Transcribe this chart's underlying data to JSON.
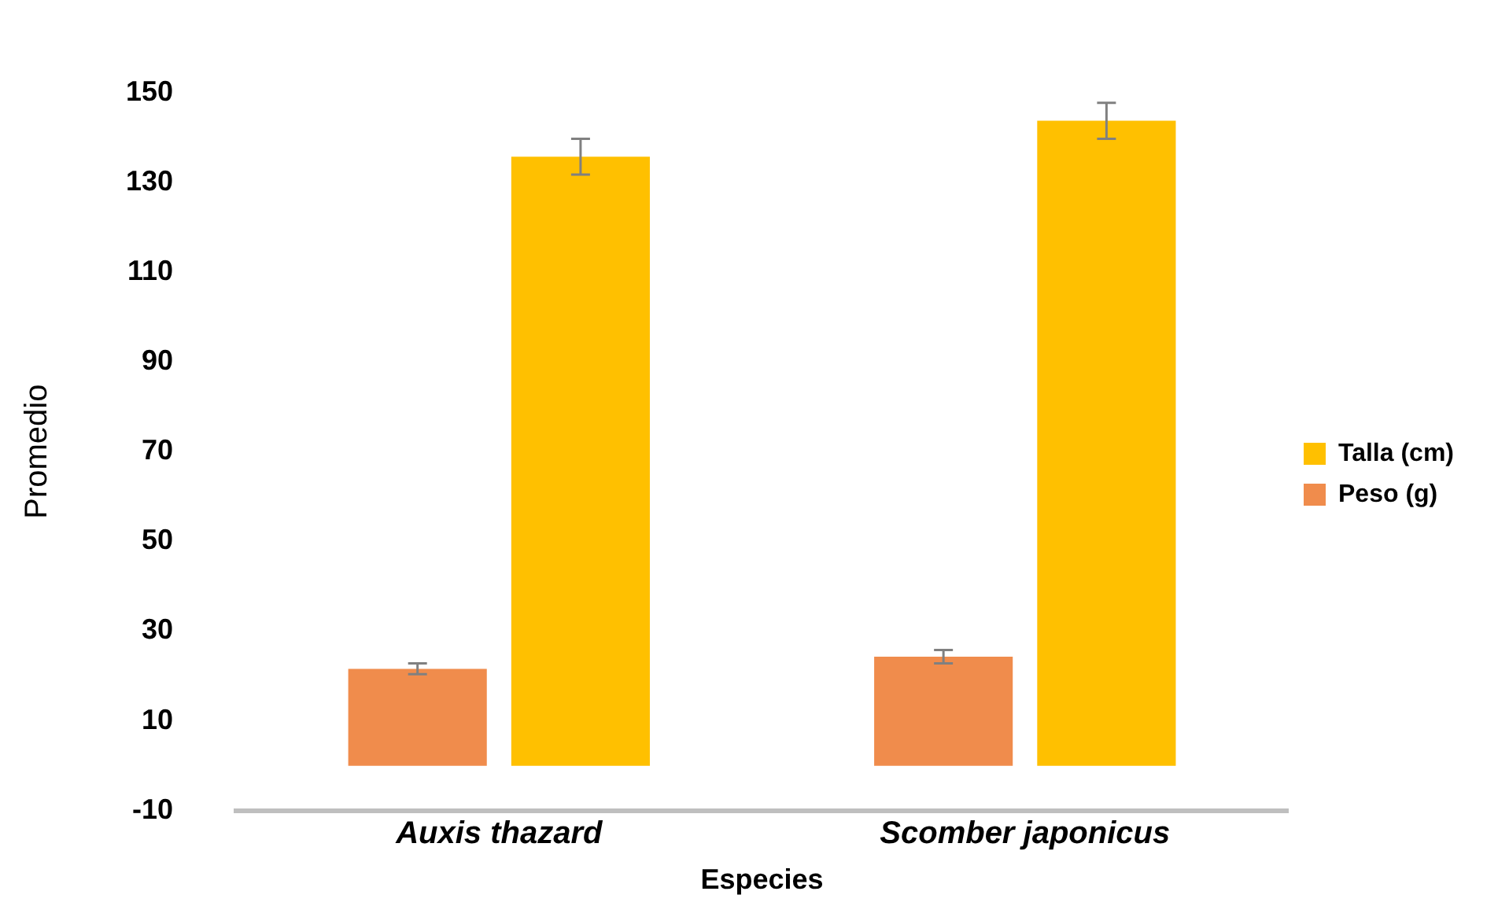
{
  "chart_data": {
    "type": "bar",
    "xlabel": "Especies",
    "ylabel": "Promedio",
    "categories": [
      "Auxis thazard",
      "Scomber japonicus"
    ],
    "series": [
      {
        "name": "Peso (g)",
        "color": "#f08c4c",
        "values": [
          21.6,
          24.3
        ],
        "errors": [
          1.2,
          1.5
        ]
      },
      {
        "name": "Talla (cm)",
        "color": "#ffc000",
        "values": [
          135.7,
          143.7
        ],
        "errors": [
          4,
          4
        ]
      }
    ],
    "ylim": [
      -10,
      150
    ],
    "yticks": [
      -10,
      10,
      30,
      50,
      70,
      90,
      110,
      130,
      150
    ],
    "grid": false,
    "legend": "right"
  }
}
